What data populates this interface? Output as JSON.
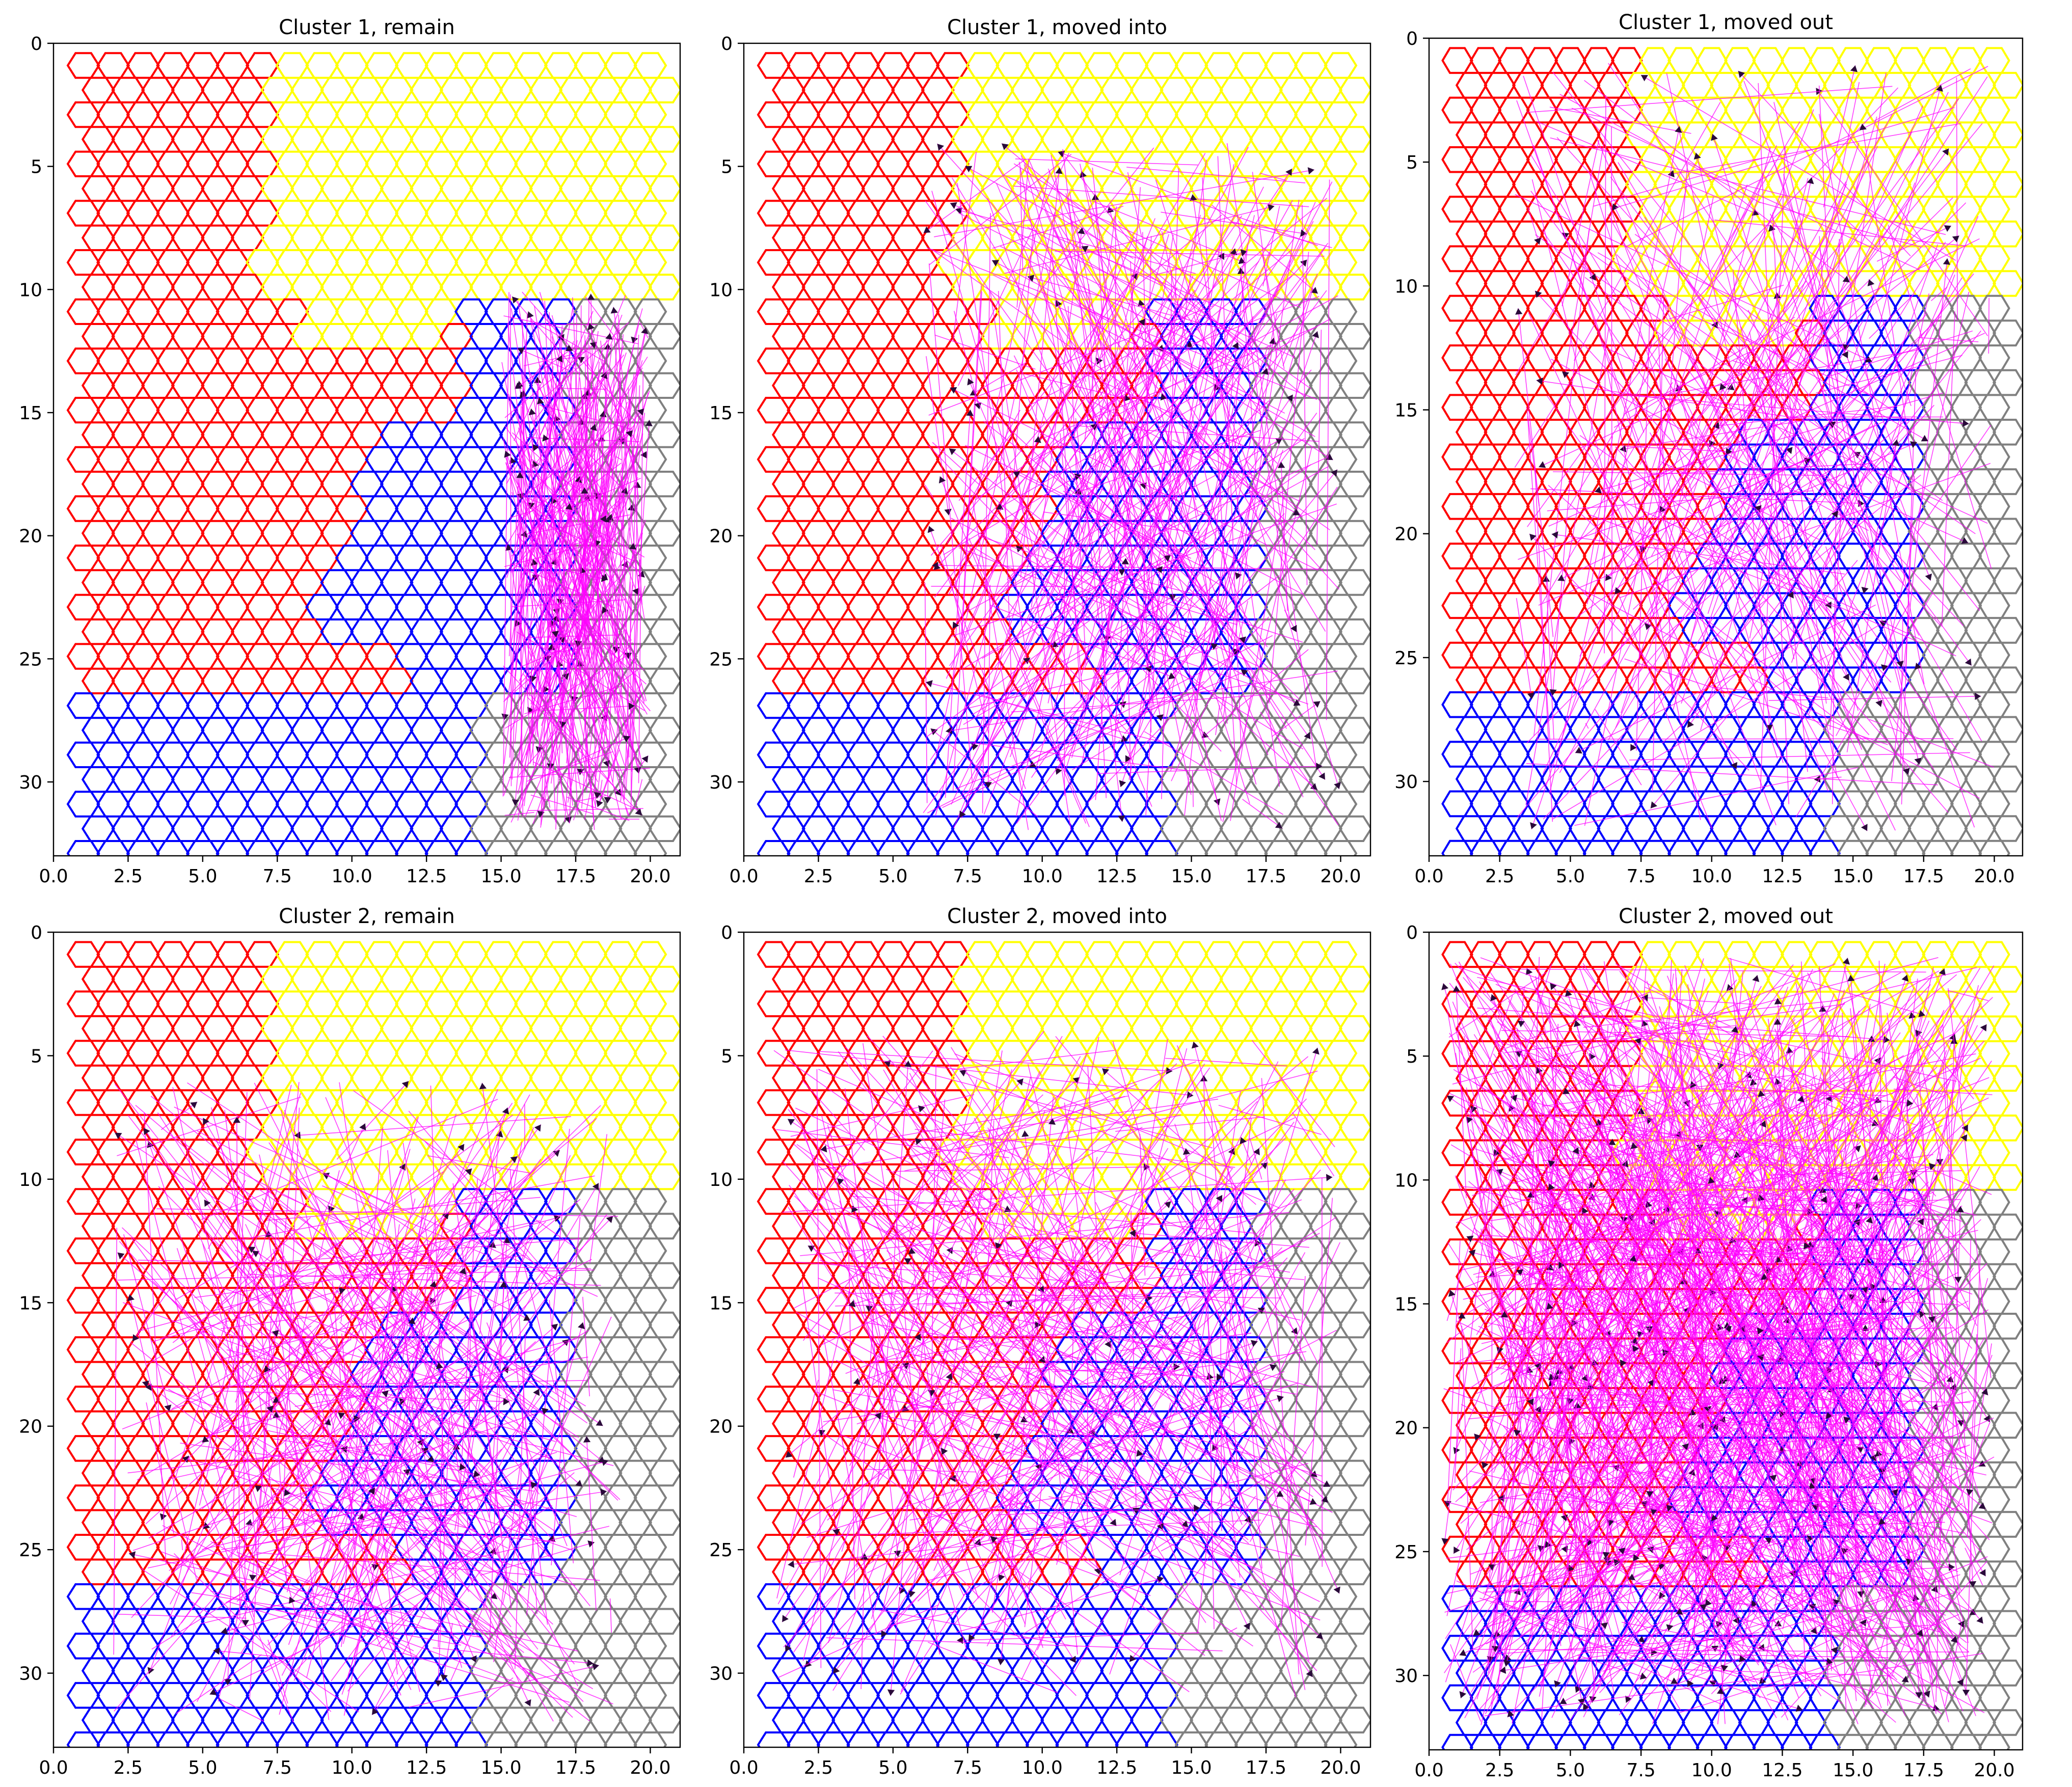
{
  "figure": {
    "colors": {
      "region_top_right": "#ffff00",
      "region_left": "#ff0000",
      "region_middle": "#0000ff",
      "region_right": "#808080",
      "arrow_line": "#ff00ff",
      "arrow_head": "#2a0a3a"
    }
  },
  "chart_data": [
    {
      "type": "scatter",
      "title": "Cluster 1, remain",
      "xlim": [
        0,
        21
      ],
      "ylim": [
        33,
        0
      ],
      "x_ticks": [
        "0.0",
        "2.5",
        "5.0",
        "7.5",
        "10.0",
        "12.5",
        "15.0",
        "17.5",
        "20.0"
      ],
      "y_ticks": [
        "0",
        "5",
        "10",
        "15",
        "20",
        "25",
        "30"
      ],
      "grid": false,
      "arrow_spread": {
        "x": [
          15,
          20
        ],
        "y": [
          10,
          32
        ]
      }
    },
    {
      "type": "scatter",
      "title": "Cluster 1, moved into",
      "xlim": [
        0,
        21
      ],
      "ylim": [
        33,
        0
      ],
      "x_ticks": [
        "0.0",
        "2.5",
        "5.0",
        "7.5",
        "10.0",
        "12.5",
        "15.0",
        "17.5",
        "20.0"
      ],
      "y_ticks": [
        "0",
        "5",
        "10",
        "15",
        "20",
        "25",
        "30"
      ],
      "grid": false,
      "arrow_spread": {
        "x": [
          6,
          20
        ],
        "y": [
          4,
          32
        ]
      }
    },
    {
      "type": "scatter",
      "title": "Cluster 1, moved out",
      "xlim": [
        0,
        21
      ],
      "ylim": [
        33,
        0
      ],
      "x_ticks": [
        "0.0",
        "2.5",
        "5.0",
        "7.5",
        "10.0",
        "12.5",
        "15.0",
        "17.5",
        "20.0"
      ],
      "y_ticks": [
        "0",
        "5",
        "10",
        "15",
        "20",
        "25",
        "30"
      ],
      "grid": false,
      "arrow_spread": {
        "x": [
          3,
          20
        ],
        "y": [
          1,
          32
        ]
      }
    },
    {
      "type": "scatter",
      "title": "Cluster 2, remain",
      "xlim": [
        0,
        21
      ],
      "ylim": [
        33,
        0
      ],
      "x_ticks": [
        "0.0",
        "2.5",
        "5.0",
        "7.5",
        "10.0",
        "12.5",
        "15.0",
        "17.5",
        "20.0"
      ],
      "y_ticks": [
        "0",
        "5",
        "10",
        "15",
        "20",
        "25",
        "30"
      ],
      "grid": false,
      "arrow_spread": {
        "x": [
          2,
          19
        ],
        "y": [
          6,
          32
        ]
      }
    },
    {
      "type": "scatter",
      "title": "Cluster 2, moved into",
      "xlim": [
        0,
        21
      ],
      "ylim": [
        33,
        0
      ],
      "x_ticks": [
        "0.0",
        "2.5",
        "5.0",
        "7.5",
        "10.0",
        "12.5",
        "15.0",
        "17.5",
        "20.0"
      ],
      "y_ticks": [
        "0",
        "5",
        "10",
        "15",
        "20",
        "25",
        "30"
      ],
      "grid": false,
      "arrow_spread": {
        "x": [
          1,
          20
        ],
        "y": [
          4,
          31
        ]
      }
    },
    {
      "type": "scatter",
      "title": "Cluster 2, moved out",
      "xlim": [
        0,
        21
      ],
      "ylim": [
        33,
        0
      ],
      "x_ticks": [
        "0.0",
        "2.5",
        "5.0",
        "7.5",
        "10.0",
        "12.5",
        "15.0",
        "17.5",
        "20.0"
      ],
      "y_ticks": [
        "0",
        "5",
        "10",
        "15",
        "20",
        "25",
        "30"
      ],
      "grid": false,
      "arrow_spread": {
        "x": [
          0.5,
          20
        ],
        "y": [
          1,
          32
        ]
      }
    }
  ]
}
